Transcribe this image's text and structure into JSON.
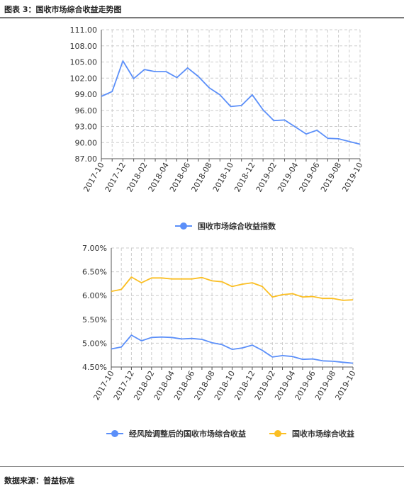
{
  "figure_title": "图表 3：国收市场综合收益走势图",
  "source_label": "数据来源：普益标准",
  "colors": {
    "blue": "#5b8ff9",
    "yellow": "#fbbf24",
    "grid": "#cccccc",
    "axis": "#555555"
  },
  "chart_data": [
    {
      "type": "line",
      "title": "",
      "xlabel": "",
      "ylabel": "",
      "categories": [
        "2017-10",
        "2017-11",
        "2017-12",
        "2018-01",
        "2018-02",
        "2018-03",
        "2018-04",
        "2018-05",
        "2018-06",
        "2018-07",
        "2018-08",
        "2018-09",
        "2018-10",
        "2018-11",
        "2018-12",
        "2019-01",
        "2019-02",
        "2019-03",
        "2019-04",
        "2019-05",
        "2019-06",
        "2019-07",
        "2019-08",
        "2019-09",
        "2019-10"
      ],
      "tick_labels": [
        "2017-10",
        "2017-12",
        "2018-02",
        "2018-04",
        "2018-06",
        "2018-08",
        "2018-10",
        "2018-12",
        "2019-02",
        "2019-04",
        "2019-06",
        "2019-08",
        "2019-10"
      ],
      "yticks": [
        "111.00",
        "108.00",
        "105.00",
        "102.00",
        "99.00",
        "96.00",
        "93.00",
        "90.00",
        "87.00"
      ],
      "ylim": [
        87,
        111
      ],
      "grid": true,
      "legend_position": "bottom",
      "series": [
        {
          "name": "国收市场综合收益指数",
          "color": "#5b8ff9",
          "values": [
            98.6,
            99.5,
            105.2,
            101.9,
            103.6,
            103.2,
            103.2,
            102.1,
            103.9,
            102.3,
            100.2,
            98.9,
            96.7,
            96.9,
            98.9,
            96.1,
            94.1,
            94.2,
            92.9,
            91.6,
            92.3,
            90.8,
            90.7,
            90.2,
            89.7
          ]
        }
      ]
    },
    {
      "type": "line",
      "title": "",
      "xlabel": "",
      "ylabel": "",
      "categories": [
        "2017-10",
        "2017-11",
        "2017-12",
        "2018-01",
        "2018-02",
        "2018-03",
        "2018-04",
        "2018-05",
        "2018-06",
        "2018-07",
        "2018-08",
        "2018-09",
        "2018-10",
        "2018-11",
        "2018-12",
        "2019-01",
        "2019-02",
        "2019-03",
        "2019-04",
        "2019-05",
        "2019-06",
        "2019-07",
        "2019-08",
        "2019-09",
        "2019-10"
      ],
      "tick_labels": [
        "2017-10",
        "2017-12",
        "2018-02",
        "2018-04",
        "2018-06",
        "2018-08",
        "2018-10",
        "2018-12",
        "2019-02",
        "2019-04",
        "2019-06",
        "2019-08",
        "2019-10"
      ],
      "yticks": [
        "7.00%",
        "6.50%",
        "6.00%",
        "5.50%",
        "5.00%",
        "4.50%"
      ],
      "ylim": [
        4.5,
        7.0
      ],
      "grid": true,
      "legend_position": "bottom",
      "series": [
        {
          "name": "经风险调整后的国收市场综合收益",
          "color": "#5b8ff9",
          "values": [
            4.88,
            4.92,
            5.17,
            5.05,
            5.12,
            5.13,
            5.12,
            5.09,
            5.1,
            5.08,
            5.01,
            4.97,
            4.87,
            4.9,
            4.96,
            4.85,
            4.71,
            4.74,
            4.72,
            4.66,
            4.67,
            4.63,
            4.62,
            4.6,
            4.58
          ]
        },
        {
          "name": "国收市场综合收益",
          "color": "#fbbf24",
          "values": [
            6.09,
            6.13,
            6.39,
            6.27,
            6.37,
            6.37,
            6.35,
            6.35,
            6.35,
            6.38,
            6.31,
            6.29,
            6.19,
            6.24,
            6.27,
            6.19,
            5.97,
            6.02,
            6.04,
            5.97,
            5.98,
            5.94,
            5.94,
            5.9,
            5.91
          ]
        }
      ]
    }
  ]
}
